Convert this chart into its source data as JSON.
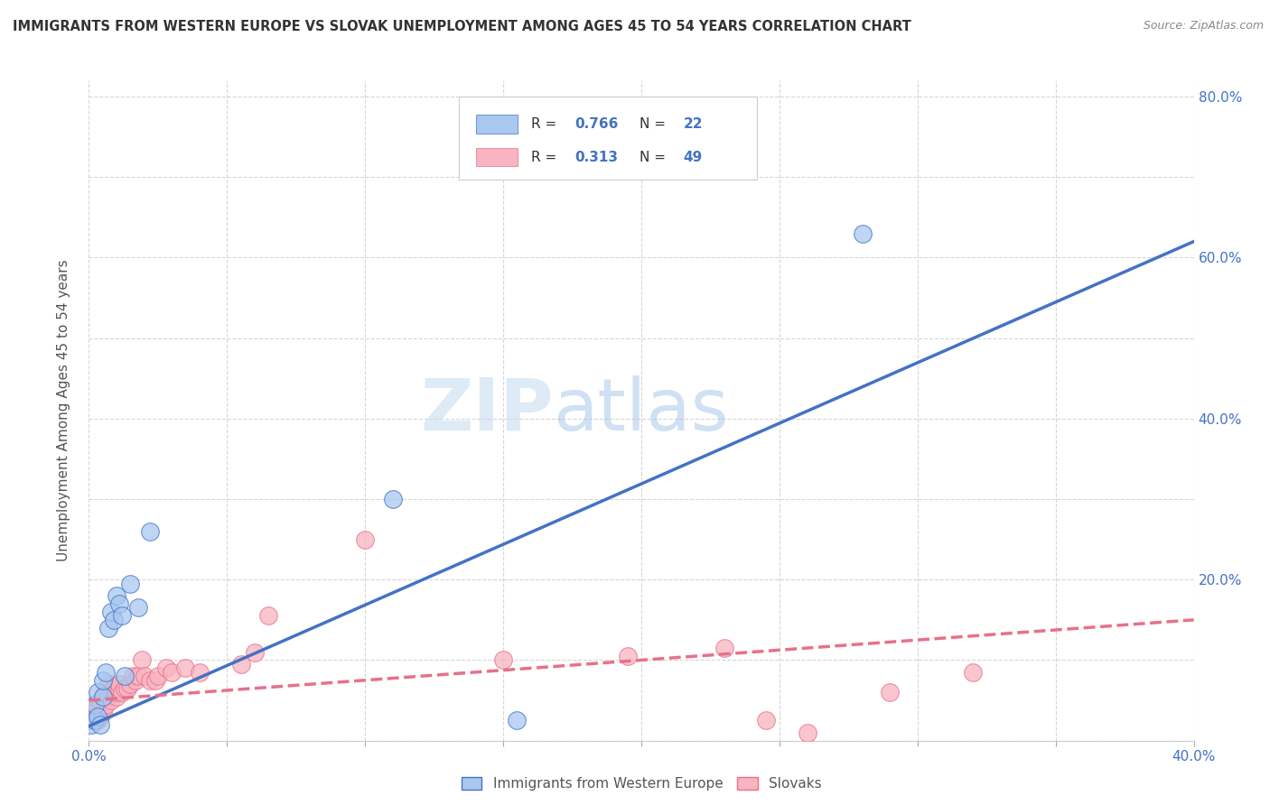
{
  "title": "IMMIGRANTS FROM WESTERN EUROPE VS SLOVAK UNEMPLOYMENT AMONG AGES 45 TO 54 YEARS CORRELATION CHART",
  "source": "Source: ZipAtlas.com",
  "ylabel": "Unemployment Among Ages 45 to 54 years",
  "xlim": [
    0.0,
    0.4
  ],
  "ylim": [
    0.0,
    0.82
  ],
  "blue_scatter_x": [
    0.001,
    0.002,
    0.002,
    0.003,
    0.003,
    0.004,
    0.005,
    0.005,
    0.006,
    0.007,
    0.008,
    0.009,
    0.01,
    0.011,
    0.012,
    0.013,
    0.015,
    0.018,
    0.022,
    0.11,
    0.28,
    0.155
  ],
  "blue_scatter_y": [
    0.02,
    0.025,
    0.045,
    0.03,
    0.06,
    0.02,
    0.055,
    0.075,
    0.085,
    0.14,
    0.16,
    0.15,
    0.18,
    0.17,
    0.155,
    0.08,
    0.195,
    0.165,
    0.26,
    0.3,
    0.63,
    0.025
  ],
  "pink_scatter_x": [
    0.001,
    0.001,
    0.002,
    0.002,
    0.003,
    0.003,
    0.004,
    0.004,
    0.005,
    0.005,
    0.006,
    0.006,
    0.007,
    0.007,
    0.008,
    0.008,
    0.009,
    0.009,
    0.01,
    0.01,
    0.011,
    0.011,
    0.012,
    0.013,
    0.014,
    0.015,
    0.016,
    0.017,
    0.018,
    0.019,
    0.02,
    0.022,
    0.024,
    0.025,
    0.028,
    0.03,
    0.035,
    0.04,
    0.055,
    0.06,
    0.065,
    0.1,
    0.15,
    0.195,
    0.23,
    0.245,
    0.26,
    0.29,
    0.32
  ],
  "pink_scatter_y": [
    0.025,
    0.035,
    0.03,
    0.045,
    0.025,
    0.04,
    0.03,
    0.05,
    0.035,
    0.055,
    0.045,
    0.06,
    0.055,
    0.07,
    0.05,
    0.06,
    0.06,
    0.065,
    0.055,
    0.06,
    0.065,
    0.07,
    0.06,
    0.065,
    0.065,
    0.07,
    0.08,
    0.075,
    0.08,
    0.1,
    0.08,
    0.075,
    0.075,
    0.08,
    0.09,
    0.085,
    0.09,
    0.085,
    0.095,
    0.11,
    0.155,
    0.25,
    0.1,
    0.105,
    0.115,
    0.025,
    0.01,
    0.06,
    0.085
  ],
  "blue_line_x": [
    0.0,
    0.4
  ],
  "blue_line_y": [
    0.018,
    0.62
  ],
  "pink_line_x": [
    0.0,
    0.4
  ],
  "pink_line_y": [
    0.05,
    0.15
  ],
  "blue_color": "#A8C8F0",
  "pink_color": "#F8B4C0",
  "blue_line_color": "#4472C4",
  "pink_line_color": "#E8708A",
  "watermark_zip": "ZIP",
  "watermark_atlas": "atlas",
  "legend_r1": "0.766",
  "legend_n1": "22",
  "legend_r2": "0.313",
  "legend_n2": "49",
  "legend_label1": "Immigrants from Western Europe",
  "legend_label2": "Slovaks",
  "background_color": "#FFFFFF",
  "grid_color": "#CCCCCC"
}
